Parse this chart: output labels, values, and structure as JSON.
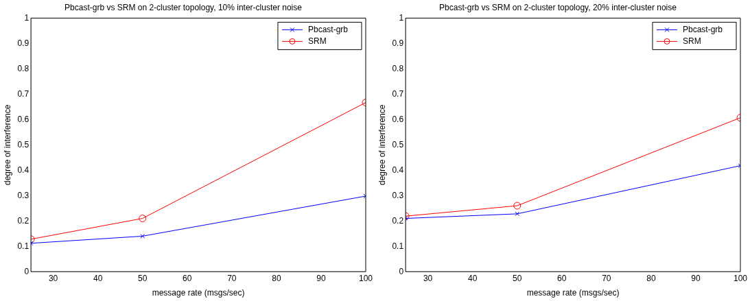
{
  "chart_data": [
    {
      "type": "line",
      "title": "Pbcast-grb vs SRM on 2-cluster topology, 10% inter-cluster noise",
      "xlabel": "message rate (msgs/sec)",
      "ylabel": "degree of interference",
      "x": [
        25,
        50,
        100
      ],
      "series": [
        {
          "name": "Pbcast-grb",
          "color": "#0000ff",
          "values": [
            0.112,
            0.14,
            0.298
          ],
          "marker": "cross"
        },
        {
          "name": "SRM",
          "color": "#ff0000",
          "values": [
            0.128,
            0.21,
            0.667
          ],
          "marker": "circle"
        }
      ],
      "xlim": [
        25,
        100
      ],
      "xticks": [
        30,
        40,
        50,
        60,
        70,
        80,
        90,
        100
      ],
      "ylim": [
        0,
        1
      ],
      "yticks": [
        0,
        0.1,
        0.2,
        0.3,
        0.4,
        0.5,
        0.6,
        0.7,
        0.8,
        0.9,
        1
      ],
      "grid": false,
      "legend": "top right"
    },
    {
      "type": "line",
      "title": "Pbcast-grb vs SRM on 2-cluster topology, 20% inter-cluster noise",
      "xlabel": "message rate (msgs/sec)",
      "ylabel": "degree of interference",
      "x": [
        25,
        50,
        100
      ],
      "series": [
        {
          "name": "Pbcast-grb",
          "color": "#0000ff",
          "values": [
            0.21,
            0.228,
            0.418
          ],
          "marker": "cross"
        },
        {
          "name": "SRM",
          "color": "#ff0000",
          "values": [
            0.219,
            0.26,
            0.607
          ],
          "marker": "circle"
        }
      ],
      "xlim": [
        25,
        100
      ],
      "xticks": [
        30,
        40,
        50,
        60,
        70,
        80,
        90,
        100
      ],
      "ylim": [
        0,
        1
      ],
      "yticks": [
        0,
        0.1,
        0.2,
        0.3,
        0.4,
        0.5,
        0.6,
        0.7,
        0.8,
        0.9,
        1
      ],
      "grid": false,
      "legend": "top right"
    }
  ]
}
